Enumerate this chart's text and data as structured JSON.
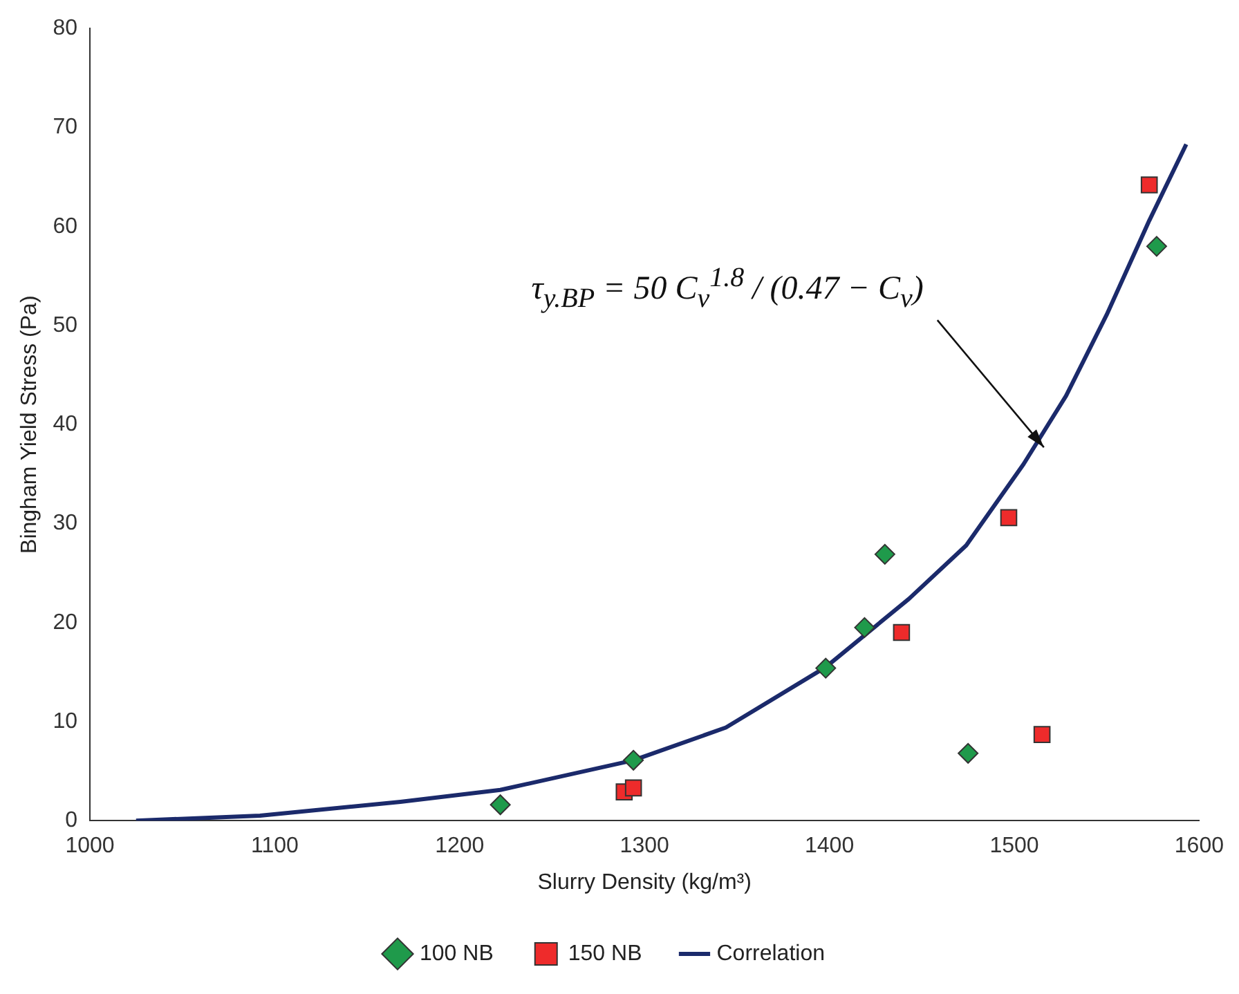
{
  "chart_data": {
    "type": "scatter",
    "xlabel": "Slurry Density (kg/m³)",
    "ylabel": "Bingham Yield Stress (Pa)",
    "xlim": [
      1000,
      1600
    ],
    "xticks": [
      1000,
      1100,
      1200,
      1300,
      1400,
      1500,
      1600
    ],
    "ylim": [
      0,
      80
    ],
    "yticks": [
      0,
      10,
      20,
      30,
      40,
      50,
      60,
      70,
      80
    ],
    "grid": false,
    "legend": "bottom",
    "series": [
      {
        "name": "100 NB",
        "color": "#1f9a4b",
        "marker": "diamond",
        "x": [
          1222,
          1294,
          1398,
          1419,
          1430,
          1475,
          1577
        ],
        "values": [
          1.6,
          6.1,
          15.4,
          19.5,
          26.9,
          6.8,
          58.0
        ]
      },
      {
        "name": "150 NB",
        "color": "#ee2b2b",
        "marker": "square",
        "x": [
          1289,
          1294,
          1439,
          1497,
          1515,
          1573
        ],
        "values": [
          2.9,
          3.3,
          19.0,
          30.6,
          8.7,
          64.2
        ]
      },
      {
        "name": "Correlation",
        "type": "line",
        "color": "#1b2a6b",
        "marker": "none",
        "x": [
          1025,
          1092,
          1168,
          1222,
          1294,
          1344,
          1398,
          1443,
          1474,
          1505,
          1528,
          1550,
          1573,
          1593
        ],
        "values": [
          0,
          0.5,
          1.9,
          3.1,
          6.1,
          9.4,
          15.5,
          22.4,
          27.8,
          36.0,
          42.9,
          51.1,
          60.6,
          68.3
        ]
      }
    ],
    "annotations": [
      {
        "text": "τ$_{y.BP}$ = 50 C$_{v}$$^{1.8}$ / (0.47 − C$_{v}$)",
        "x": 1516,
        "y": 37.7
      }
    ]
  }
}
